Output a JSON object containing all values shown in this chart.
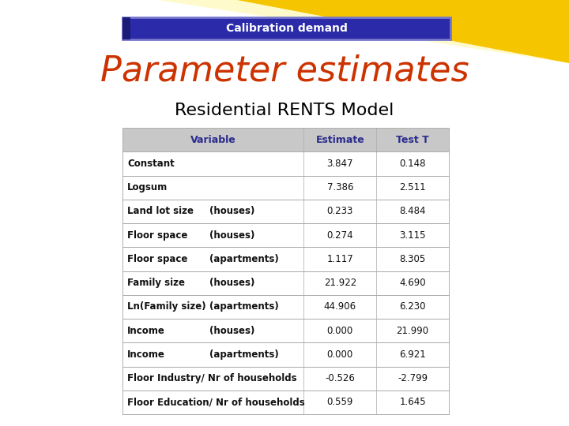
{
  "calibration_label": "Calibration demand",
  "title": "Parameter estimates",
  "subtitle": "Residential RENTS Model",
  "header": [
    "Variable",
    "Estimate",
    "Test T"
  ],
  "rows": [
    [
      "Constant",
      "",
      "3.847",
      "0.148"
    ],
    [
      "Logsum",
      "",
      "7.386",
      "2.511"
    ],
    [
      "Land lot size",
      "(houses)",
      "0.233",
      "8.484"
    ],
    [
      "Floor space",
      "(houses)",
      "0.274",
      "3.115"
    ],
    [
      "Floor space",
      "(apartments)",
      "1.117",
      "8.305"
    ],
    [
      "Family size",
      "(houses)",
      "21.922",
      "4.690"
    ],
    [
      "Ln(Family size)",
      "(apartments)",
      "44.906",
      "6.230"
    ],
    [
      "Income",
      "(houses)",
      "0.000",
      "21.990"
    ],
    [
      "Income",
      "(apartments)",
      "0.000",
      "6.921"
    ],
    [
      "Floor Industry/ Nr of households",
      "",
      "-0.526",
      "-2.799"
    ],
    [
      "Floor Education/ Nr of households",
      "",
      "0.559",
      "1.645"
    ]
  ],
  "header_bg": "#c8c8c8",
  "header_text_color": "#2b2b8e",
  "row_bg": "#ffffff",
  "title_color": "#cc3300",
  "subtitle_color": "#000000",
  "cal_bg": "#2b2baa",
  "cal_text_color": "#ffffff",
  "cal_border_color": "#7777cc",
  "page_bg": "#ffffff",
  "yellow_color": "#f5c500",
  "table_border": "#aaaaaa",
  "row_text_color": "#111111"
}
